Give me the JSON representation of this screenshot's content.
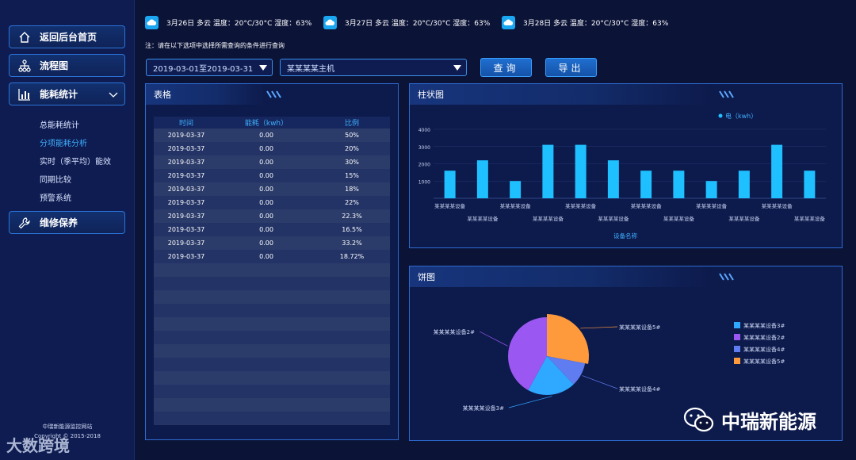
{
  "sidebar": {
    "home_label": "返回后台首页",
    "flow_label": "流程图",
    "energy_label": "能耗统计",
    "sub_items": [
      "总能耗统计",
      "分项能耗分析",
      "实时（季平均）能效",
      "同期比较",
      "预警系统"
    ],
    "active_sub_index": 1,
    "maintenance_label": "维修保养",
    "site_name": "中瑞新能源监控网站",
    "copyright": "Copyright © 2015-2018"
  },
  "weather": [
    {
      "text": "3月26日 多云 温度：20°C/30°C 湿度：63%",
      "icon": "cloud-icon"
    },
    {
      "text": "3月27日 多云 温度：20°C/30°C 湿度：63%",
      "icon": "cloud-icon"
    },
    {
      "text": "3月28日 多云 温度：20°C/30°C 湿度：63%",
      "icon": "cloud-icon"
    }
  ],
  "note": "注：请在以下选项中选择所需查询的条件进行查询",
  "filters": {
    "date_range": "2019-03-01至2019-03-31",
    "host": "某某某某主机",
    "query_label": "查询",
    "export_label": "导出"
  },
  "table_panel": {
    "title": "表格",
    "columns": [
      "时间",
      "能耗（kwh）",
      "比例"
    ],
    "rows": [
      [
        "2019-03-37",
        "0.00",
        "50%"
      ],
      [
        "2019-03-37",
        "0.00",
        "20%"
      ],
      [
        "2019-03-37",
        "0.00",
        "30%"
      ],
      [
        "2019-03-37",
        "0.00",
        "15%"
      ],
      [
        "2019-03-37",
        "0.00",
        "18%"
      ],
      [
        "2019-03-37",
        "0.00",
        "22%"
      ],
      [
        "2019-03-37",
        "0.00",
        "22.3%"
      ],
      [
        "2019-03-37",
        "0.00",
        "16.5%"
      ],
      [
        "2019-03-37",
        "0.00",
        "33.2%"
      ],
      [
        "2019-03-37",
        "0.00",
        "18.72%"
      ]
    ],
    "empty_rows": 12
  },
  "bar_panel": {
    "title": "柱状图"
  },
  "pie_panel": {
    "title": "饼图"
  },
  "chart_data": [
    {
      "type": "bar",
      "legend": "电（kwh）",
      "xlabel": "设备名称",
      "ylim": [
        0,
        4000
      ],
      "yticks": [
        1000,
        2000,
        3000,
        4000
      ],
      "categories": [
        "某某某某设备",
        "某某某某设备",
        "某某某某设备",
        "某某某某设备",
        "某某某某设备",
        "某某某某设备",
        "某某某某设备",
        "某某某某设备",
        "某某某某设备",
        "某某某某设备",
        "某某某某设备",
        "某某某某设备"
      ],
      "values": [
        1600,
        2200,
        1000,
        3100,
        3100,
        2200,
        1600,
        1600,
        1000,
        1600,
        3100,
        1600
      ],
      "color": "#1ec0ff"
    },
    {
      "type": "pie",
      "slices": [
        {
          "label": "某某某某设备5#",
          "value": 28,
          "color": "#ff9a3c"
        },
        {
          "label": "某某某某设备4#",
          "value": 10,
          "color": "#5f7df0"
        },
        {
          "label": "某某某某设备3#",
          "value": 20,
          "color": "#2fa8ff"
        },
        {
          "label": "某某某某设备2#",
          "value": 42,
          "color": "#9b57f2"
        }
      ],
      "legend": [
        {
          "label": "某某某某设备3#",
          "color": "#2fa8ff"
        },
        {
          "label": "某某某某设备2#",
          "color": "#9b57f2"
        },
        {
          "label": "某某某某设备4#",
          "color": "#5f7df0"
        },
        {
          "label": "某某某某设备5#",
          "color": "#ff9a3c"
        }
      ]
    }
  ],
  "watermarks": {
    "left": "大数跨境",
    "right": "中瑞新能源"
  }
}
